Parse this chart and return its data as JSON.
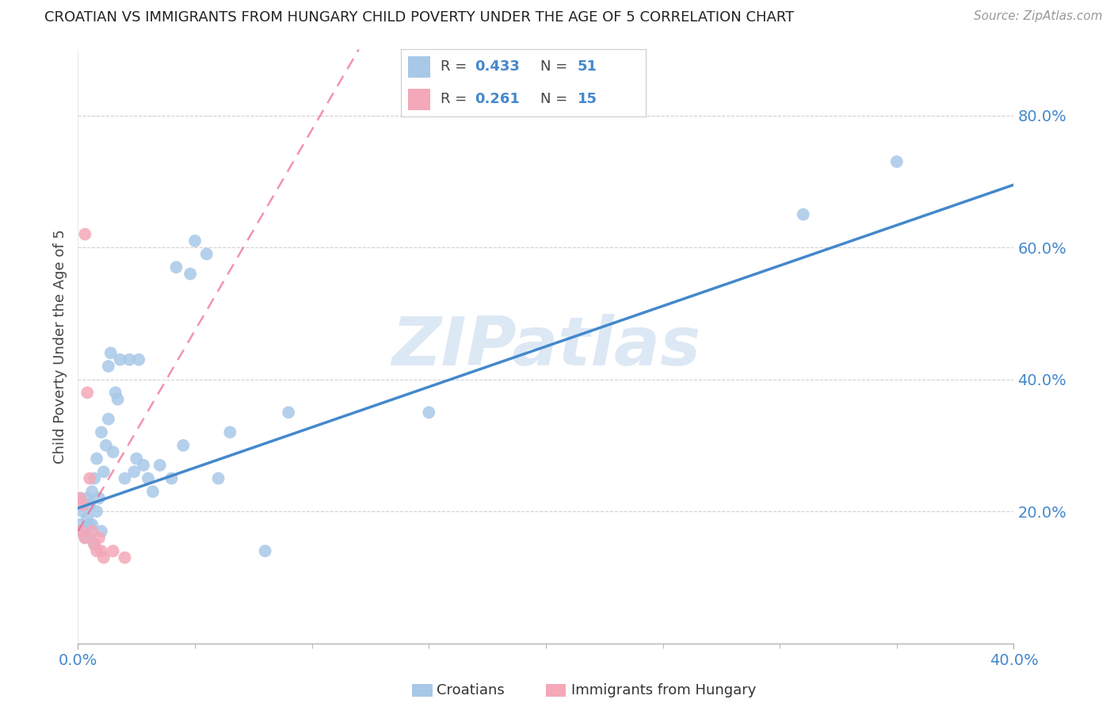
{
  "title": "CROATIAN VS IMMIGRANTS FROM HUNGARY CHILD POVERTY UNDER THE AGE OF 5 CORRELATION CHART",
  "source": "Source: ZipAtlas.com",
  "ylabel": "Child Poverty Under the Age of 5",
  "xlim": [
    0.0,
    0.4
  ],
  "ylim": [
    0.0,
    0.9
  ],
  "yticks": [
    0.2,
    0.4,
    0.6,
    0.8
  ],
  "xticks": [
    0.0,
    0.4
  ],
  "legend_r1": "0.433",
  "legend_n1": "51",
  "legend_r2": "0.261",
  "legend_n2": "15",
  "croatians_color": "#a8c8e8",
  "hungary_color": "#f4a8b8",
  "croatians_line_color": "#4488cc",
  "hungary_line_color": "#ee6688",
  "grid_color": "#cccccc",
  "title_color": "#222222",
  "axis_label_color": "#4488cc",
  "watermark_color": "#dde8f5",
  "croatians_x": [
    0.001,
    0.001,
    0.002,
    0.002,
    0.003,
    0.003,
    0.004,
    0.004,
    0.005,
    0.005,
    0.005,
    0.006,
    0.006,
    0.007,
    0.007,
    0.008,
    0.008,
    0.009,
    0.01,
    0.01,
    0.011,
    0.012,
    0.013,
    0.013,
    0.014,
    0.015,
    0.016,
    0.017,
    0.018,
    0.02,
    0.022,
    0.024,
    0.025,
    0.026,
    0.028,
    0.03,
    0.032,
    0.035,
    0.04,
    0.042,
    0.045,
    0.048,
    0.05,
    0.055,
    0.06,
    0.065,
    0.08,
    0.09,
    0.15,
    0.31,
    0.35
  ],
  "croatians_y": [
    0.22,
    0.18,
    0.17,
    0.2,
    0.17,
    0.16,
    0.22,
    0.19,
    0.16,
    0.21,
    0.18,
    0.23,
    0.18,
    0.15,
    0.25,
    0.2,
    0.28,
    0.22,
    0.32,
    0.17,
    0.26,
    0.3,
    0.34,
    0.42,
    0.44,
    0.29,
    0.38,
    0.37,
    0.43,
    0.25,
    0.43,
    0.26,
    0.28,
    0.43,
    0.27,
    0.25,
    0.23,
    0.27,
    0.25,
    0.57,
    0.3,
    0.56,
    0.61,
    0.59,
    0.25,
    0.32,
    0.14,
    0.35,
    0.35,
    0.65,
    0.73
  ],
  "hungary_x": [
    0.001,
    0.001,
    0.002,
    0.003,
    0.003,
    0.004,
    0.005,
    0.006,
    0.007,
    0.008,
    0.009,
    0.01,
    0.011,
    0.015,
    0.02
  ],
  "hungary_y": [
    0.17,
    0.22,
    0.21,
    0.62,
    0.16,
    0.38,
    0.25,
    0.17,
    0.15,
    0.14,
    0.16,
    0.14,
    0.13,
    0.14,
    0.13
  ],
  "line1_x0": 0.0,
  "line1_y0": 0.205,
  "line1_x1": 0.4,
  "line1_y1": 0.695,
  "line2_x0": 0.0,
  "line2_y0": 0.17,
  "line2_x1": 0.12,
  "line2_y1": 0.9
}
